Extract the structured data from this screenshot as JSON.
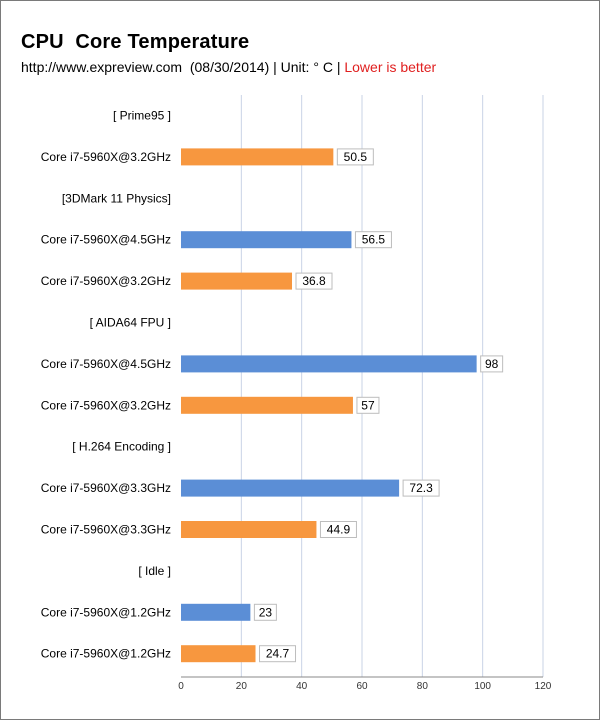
{
  "chart_data": {
    "type": "bar",
    "orientation": "horizontal",
    "title": "CPU  Core Temperature",
    "subtitle": "http://www.expreview.com  (08/30/2014) | Unit: ° C |",
    "subtitle_highlight": "Lower is better",
    "xlim": [
      0,
      120
    ],
    "xticks": [
      0,
      20,
      40,
      60,
      80,
      100,
      120
    ],
    "grid": true,
    "colors": {
      "blue": "#5b8ed6",
      "orange": "#f7973f",
      "highlight_text": "#e02020"
    },
    "rows": [
      {
        "label": "[ Prime95 ]",
        "is_header": true
      },
      {
        "label": "Core i7-5960X@3.2GHz",
        "value": 50.5,
        "value_label": "50.5",
        "color": "orange"
      },
      {
        "label": "[3DMark 11 Physics]",
        "is_header": true
      },
      {
        "label": "Core i7-5960X@4.5GHz",
        "value": 56.5,
        "value_label": "56.5",
        "color": "blue"
      },
      {
        "label": "Core i7-5960X@3.2GHz",
        "value": 36.8,
        "value_label": "36.8",
        "color": "orange"
      },
      {
        "label": "[ AIDA64 FPU ]",
        "is_header": true
      },
      {
        "label": "Core i7-5960X@4.5GHz",
        "value": 98,
        "value_label": "98",
        "color": "blue"
      },
      {
        "label": "Core i7-5960X@3.2GHz",
        "value": 57,
        "value_label": "57",
        "color": "orange"
      },
      {
        "label": "[ H.264 Encoding ]",
        "is_header": true
      },
      {
        "label": "Core i7-5960X@3.3GHz",
        "value": 72.3,
        "value_label": "72.3",
        "color": "blue"
      },
      {
        "label": "Core i7-5960X@3.3GHz",
        "value": 44.9,
        "value_label": "44.9",
        "color": "orange"
      },
      {
        "label": "[ Idle ]",
        "is_header": true
      },
      {
        "label": "Core i7-5960X@1.2GHz",
        "value": 23,
        "value_label": "23",
        "color": "blue"
      },
      {
        "label": "Core i7-5960X@1.2GHz",
        "value": 24.7,
        "value_label": "24.7",
        "color": "orange"
      }
    ]
  }
}
